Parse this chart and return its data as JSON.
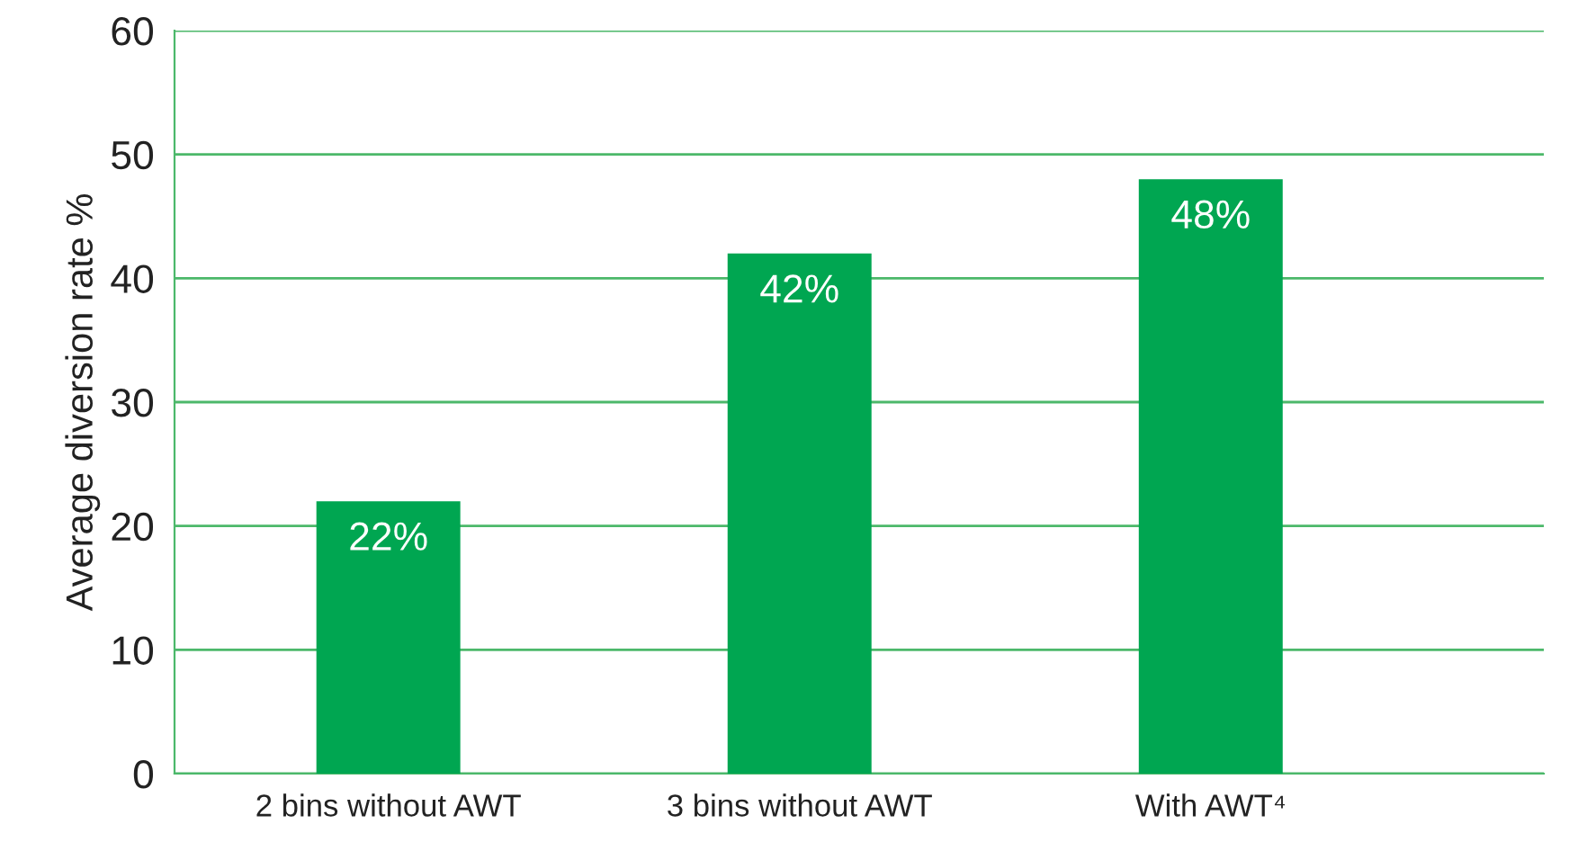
{
  "chart_data": {
    "type": "bar",
    "ylabel": "Average diversion rate %",
    "categories": [
      "2 bins without AWT",
      "3 bins without AWT",
      "With AWT⁴"
    ],
    "values": [
      22,
      42,
      48
    ],
    "color": "#00a651",
    "value_labels": [
      "22%",
      "42%",
      "48%"
    ],
    "ylim": [
      0,
      60
    ],
    "yticks": [
      0,
      10,
      20,
      30,
      40,
      50,
      60
    ],
    "grid": "y"
  }
}
